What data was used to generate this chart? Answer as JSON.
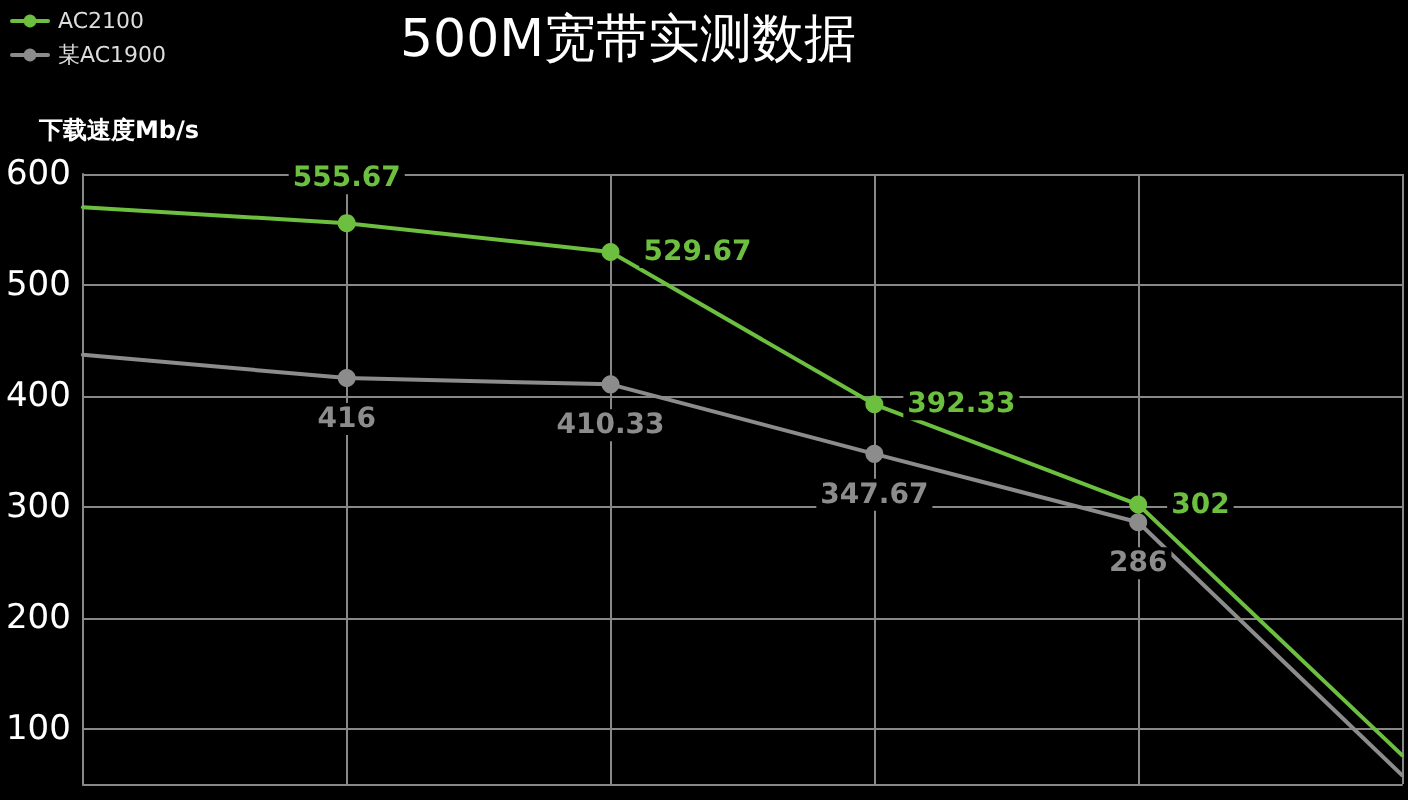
{
  "chart_data": {
    "type": "line",
    "title": "500M宽带实测数据",
    "ylabel": "下载速度Mb/s",
    "categories": [
      null,
      null,
      null,
      null,
      null,
      null
    ],
    "series": [
      {
        "name": "AC2100",
        "color": "#6cbf3f",
        "values": [
          570,
          555.67,
          529.67,
          392.33,
          302,
          76
        ],
        "value_labels": [
          null,
          "555.67",
          "529.67",
          "392.33",
          "302",
          null
        ]
      },
      {
        "name": "某AC1900",
        "color": "#8c8c8c",
        "values": [
          437,
          416,
          410.33,
          347.67,
          286,
          58
        ],
        "value_labels": [
          null,
          "416",
          "410.33",
          "347.67",
          "286",
          null
        ]
      }
    ],
    "ylim": [
      50,
      600
    ],
    "yticks": [
      100,
      200,
      300,
      400,
      500,
      600
    ],
    "grid": true,
    "legend": "top left",
    "marker": "circle",
    "line_style": "solid"
  }
}
